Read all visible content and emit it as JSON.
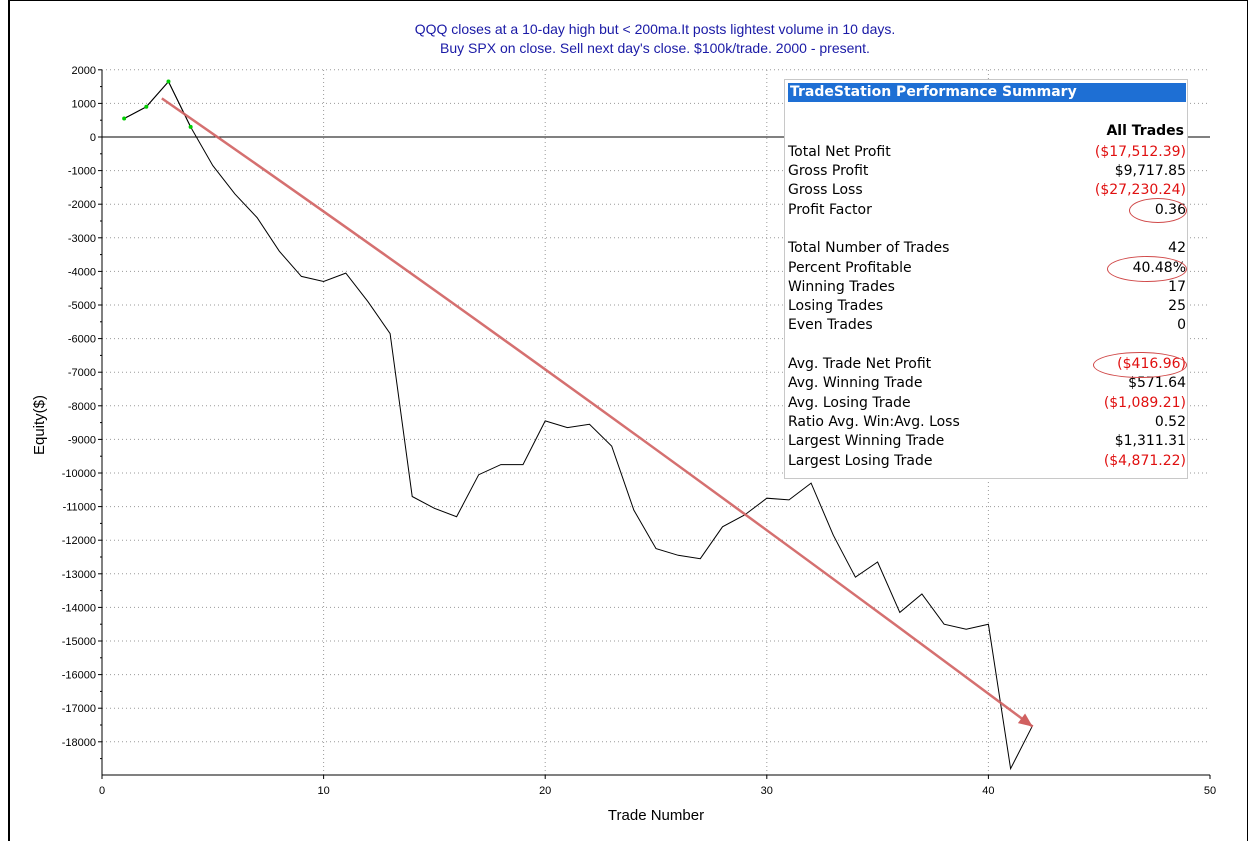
{
  "chart_data": {
    "type": "line",
    "title": "QQQ closes at a 10-day high but < 200ma.It posts lightest volume in 10 days.",
    "subtitle": "Buy SPX on close. Sell next day's close. $100k/trade. 2000 - present.",
    "xlabel": "Trade Number",
    "ylabel": "Equity($)",
    "xlim": [
      0,
      50
    ],
    "ylim": [
      -19000,
      2000
    ],
    "x_ticks": [
      "0",
      "10",
      "20",
      "30",
      "40",
      "50"
    ],
    "y_ticks": [
      "2000",
      "1000",
      "0",
      "-1000",
      "-2000",
      "-3000",
      "-4000",
      "-5000",
      "-6000",
      "-7000",
      "-8000",
      "-9000",
      "-10000",
      "-11000",
      "-12000",
      "-13000",
      "-14000",
      "-15000",
      "-16000",
      "-17000",
      "-18000"
    ],
    "grid": true,
    "series": [
      {
        "color": "#000000",
        "x": [
          1,
          2,
          3,
          4,
          5,
          6,
          7,
          8,
          9,
          10,
          11,
          12,
          13,
          14,
          15,
          16,
          17,
          18,
          19,
          20,
          21,
          22,
          23,
          24,
          25,
          26,
          27,
          28,
          29,
          30,
          31,
          32,
          33,
          34,
          35,
          36,
          37,
          38,
          39,
          40,
          41,
          42
        ],
        "values": [
          550,
          900,
          1650,
          300,
          -850,
          -1700,
          -2400,
          -3400,
          -4150,
          -4300,
          -4050,
          -4900,
          -5850,
          -10700,
          -11050,
          -11300,
          -10050,
          -9750,
          -9750,
          -8450,
          -8650,
          -8550,
          -9200,
          -11100,
          -12250,
          -12450,
          -12550,
          -11600,
          -11250,
          -10750,
          -10800,
          -10300,
          -11850,
          -13100,
          -12650,
          -14150,
          -13600,
          -14500,
          -14650,
          -14500,
          -18800,
          -17510
        ]
      }
    ],
    "positive_marker_color": "#00cc00",
    "trend_arrow": {
      "color": "#d06060",
      "from": [
        2.7,
        1150
      ],
      "to": [
        42,
        -17550
      ]
    }
  },
  "summary": {
    "title": "TradeStation Performance Summary",
    "column_header": "All Trades",
    "rows": [
      {
        "label": "Total Net Profit",
        "value": "($17,512.39)",
        "negative": true
      },
      {
        "label": "Gross Profit",
        "value": "$9,717.85",
        "negative": false
      },
      {
        "label": "Gross Loss",
        "value": "($27,230.24)",
        "negative": true
      },
      {
        "label": "Profit Factor",
        "value": "0.36",
        "negative": false
      },
      {
        "label": "Total Number of Trades",
        "value": "42",
        "negative": false
      },
      {
        "label": "Percent Profitable",
        "value": "40.48%",
        "negative": false
      },
      {
        "label": "Winning Trades",
        "value": "17",
        "negative": false
      },
      {
        "label": "Losing Trades",
        "value": "25",
        "negative": false
      },
      {
        "label": "Even Trades",
        "value": "0",
        "negative": false
      },
      {
        "label": "Avg. Trade Net Profit",
        "value": "($416.96)",
        "negative": true
      },
      {
        "label": "Avg. Winning Trade",
        "value": "$571.64",
        "negative": false
      },
      {
        "label": "Avg. Losing Trade",
        "value": "($1,089.21)",
        "negative": true
      },
      {
        "label": "Ratio Avg. Win:Avg. Loss",
        "value": "0.52",
        "negative": false
      },
      {
        "label": "Largest Winning Trade",
        "value": "$1,311.31",
        "negative": false
      },
      {
        "label": "Largest Losing Trade",
        "value": "($4,871.22)",
        "negative": true
      }
    ],
    "highlight_color": "#d04848"
  }
}
